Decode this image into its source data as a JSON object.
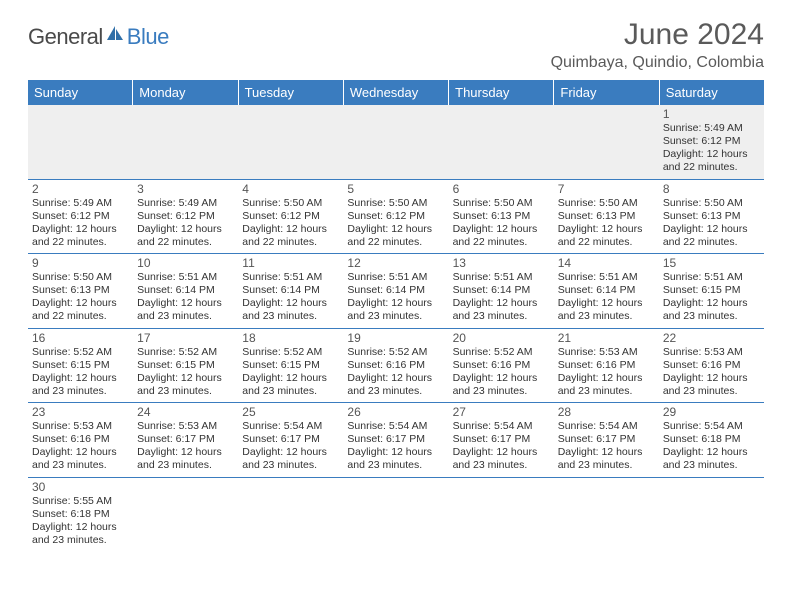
{
  "brand": {
    "name1": "General",
    "name2": "Blue"
  },
  "title": "June 2024",
  "location": "Quimbaya, Quindio, Colombia",
  "colors": {
    "header_bg": "#3a7cbf",
    "header_text": "#ffffff",
    "row_alt_bg": "#efefef",
    "border": "#3a7cbf",
    "text": "#333333",
    "title_text": "#5a5a5a"
  },
  "day_names": [
    "Sunday",
    "Monday",
    "Tuesday",
    "Wednesday",
    "Thursday",
    "Friday",
    "Saturday"
  ],
  "weeks": [
    [
      {
        "day": "",
        "sunrise": "",
        "sunset": "",
        "daylight": ""
      },
      {
        "day": "",
        "sunrise": "",
        "sunset": "",
        "daylight": ""
      },
      {
        "day": "",
        "sunrise": "",
        "sunset": "",
        "daylight": ""
      },
      {
        "day": "",
        "sunrise": "",
        "sunset": "",
        "daylight": ""
      },
      {
        "day": "",
        "sunrise": "",
        "sunset": "",
        "daylight": ""
      },
      {
        "day": "",
        "sunrise": "",
        "sunset": "",
        "daylight": ""
      },
      {
        "day": "1",
        "sunrise": "Sunrise: 5:49 AM",
        "sunset": "Sunset: 6:12 PM",
        "daylight": "Daylight: 12 hours and 22 minutes."
      }
    ],
    [
      {
        "day": "2",
        "sunrise": "Sunrise: 5:49 AM",
        "sunset": "Sunset: 6:12 PM",
        "daylight": "Daylight: 12 hours and 22 minutes."
      },
      {
        "day": "3",
        "sunrise": "Sunrise: 5:49 AM",
        "sunset": "Sunset: 6:12 PM",
        "daylight": "Daylight: 12 hours and 22 minutes."
      },
      {
        "day": "4",
        "sunrise": "Sunrise: 5:50 AM",
        "sunset": "Sunset: 6:12 PM",
        "daylight": "Daylight: 12 hours and 22 minutes."
      },
      {
        "day": "5",
        "sunrise": "Sunrise: 5:50 AM",
        "sunset": "Sunset: 6:12 PM",
        "daylight": "Daylight: 12 hours and 22 minutes."
      },
      {
        "day": "6",
        "sunrise": "Sunrise: 5:50 AM",
        "sunset": "Sunset: 6:13 PM",
        "daylight": "Daylight: 12 hours and 22 minutes."
      },
      {
        "day": "7",
        "sunrise": "Sunrise: 5:50 AM",
        "sunset": "Sunset: 6:13 PM",
        "daylight": "Daylight: 12 hours and 22 minutes."
      },
      {
        "day": "8",
        "sunrise": "Sunrise: 5:50 AM",
        "sunset": "Sunset: 6:13 PM",
        "daylight": "Daylight: 12 hours and 22 minutes."
      }
    ],
    [
      {
        "day": "9",
        "sunrise": "Sunrise: 5:50 AM",
        "sunset": "Sunset: 6:13 PM",
        "daylight": "Daylight: 12 hours and 22 minutes."
      },
      {
        "day": "10",
        "sunrise": "Sunrise: 5:51 AM",
        "sunset": "Sunset: 6:14 PM",
        "daylight": "Daylight: 12 hours and 23 minutes."
      },
      {
        "day": "11",
        "sunrise": "Sunrise: 5:51 AM",
        "sunset": "Sunset: 6:14 PM",
        "daylight": "Daylight: 12 hours and 23 minutes."
      },
      {
        "day": "12",
        "sunrise": "Sunrise: 5:51 AM",
        "sunset": "Sunset: 6:14 PM",
        "daylight": "Daylight: 12 hours and 23 minutes."
      },
      {
        "day": "13",
        "sunrise": "Sunrise: 5:51 AM",
        "sunset": "Sunset: 6:14 PM",
        "daylight": "Daylight: 12 hours and 23 minutes."
      },
      {
        "day": "14",
        "sunrise": "Sunrise: 5:51 AM",
        "sunset": "Sunset: 6:14 PM",
        "daylight": "Daylight: 12 hours and 23 minutes."
      },
      {
        "day": "15",
        "sunrise": "Sunrise: 5:51 AM",
        "sunset": "Sunset: 6:15 PM",
        "daylight": "Daylight: 12 hours and 23 minutes."
      }
    ],
    [
      {
        "day": "16",
        "sunrise": "Sunrise: 5:52 AM",
        "sunset": "Sunset: 6:15 PM",
        "daylight": "Daylight: 12 hours and 23 minutes."
      },
      {
        "day": "17",
        "sunrise": "Sunrise: 5:52 AM",
        "sunset": "Sunset: 6:15 PM",
        "daylight": "Daylight: 12 hours and 23 minutes."
      },
      {
        "day": "18",
        "sunrise": "Sunrise: 5:52 AM",
        "sunset": "Sunset: 6:15 PM",
        "daylight": "Daylight: 12 hours and 23 minutes."
      },
      {
        "day": "19",
        "sunrise": "Sunrise: 5:52 AM",
        "sunset": "Sunset: 6:16 PM",
        "daylight": "Daylight: 12 hours and 23 minutes."
      },
      {
        "day": "20",
        "sunrise": "Sunrise: 5:52 AM",
        "sunset": "Sunset: 6:16 PM",
        "daylight": "Daylight: 12 hours and 23 minutes."
      },
      {
        "day": "21",
        "sunrise": "Sunrise: 5:53 AM",
        "sunset": "Sunset: 6:16 PM",
        "daylight": "Daylight: 12 hours and 23 minutes."
      },
      {
        "day": "22",
        "sunrise": "Sunrise: 5:53 AM",
        "sunset": "Sunset: 6:16 PM",
        "daylight": "Daylight: 12 hours and 23 minutes."
      }
    ],
    [
      {
        "day": "23",
        "sunrise": "Sunrise: 5:53 AM",
        "sunset": "Sunset: 6:16 PM",
        "daylight": "Daylight: 12 hours and 23 minutes."
      },
      {
        "day": "24",
        "sunrise": "Sunrise: 5:53 AM",
        "sunset": "Sunset: 6:17 PM",
        "daylight": "Daylight: 12 hours and 23 minutes."
      },
      {
        "day": "25",
        "sunrise": "Sunrise: 5:54 AM",
        "sunset": "Sunset: 6:17 PM",
        "daylight": "Daylight: 12 hours and 23 minutes."
      },
      {
        "day": "26",
        "sunrise": "Sunrise: 5:54 AM",
        "sunset": "Sunset: 6:17 PM",
        "daylight": "Daylight: 12 hours and 23 minutes."
      },
      {
        "day": "27",
        "sunrise": "Sunrise: 5:54 AM",
        "sunset": "Sunset: 6:17 PM",
        "daylight": "Daylight: 12 hours and 23 minutes."
      },
      {
        "day": "28",
        "sunrise": "Sunrise: 5:54 AM",
        "sunset": "Sunset: 6:17 PM",
        "daylight": "Daylight: 12 hours and 23 minutes."
      },
      {
        "day": "29",
        "sunrise": "Sunrise: 5:54 AM",
        "sunset": "Sunset: 6:18 PM",
        "daylight": "Daylight: 12 hours and 23 minutes."
      }
    ],
    [
      {
        "day": "30",
        "sunrise": "Sunrise: 5:55 AM",
        "sunset": "Sunset: 6:18 PM",
        "daylight": "Daylight: 12 hours and 23 minutes."
      },
      {
        "day": "",
        "sunrise": "",
        "sunset": "",
        "daylight": ""
      },
      {
        "day": "",
        "sunrise": "",
        "sunset": "",
        "daylight": ""
      },
      {
        "day": "",
        "sunrise": "",
        "sunset": "",
        "daylight": ""
      },
      {
        "day": "",
        "sunrise": "",
        "sunset": "",
        "daylight": ""
      },
      {
        "day": "",
        "sunrise": "",
        "sunset": "",
        "daylight": ""
      },
      {
        "day": "",
        "sunrise": "",
        "sunset": "",
        "daylight": ""
      }
    ]
  ]
}
